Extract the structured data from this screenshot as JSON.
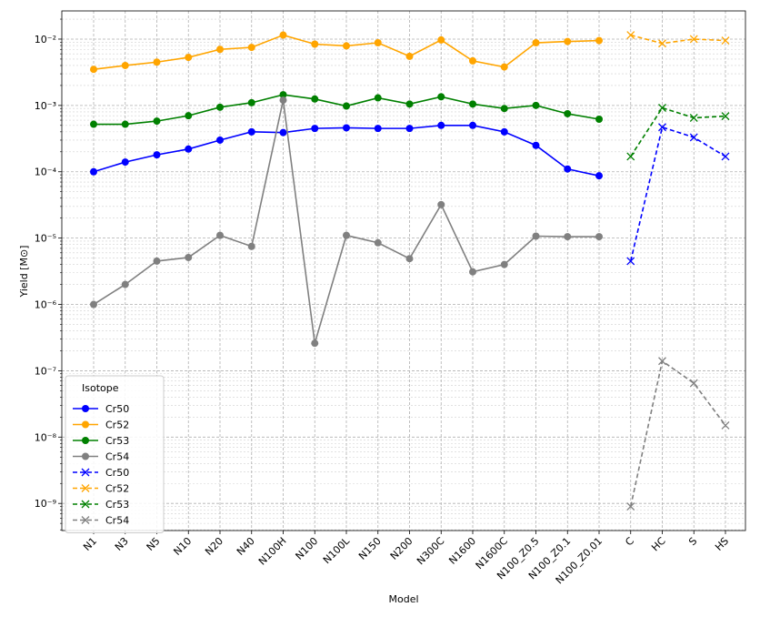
{
  "chart_data": {
    "type": "line",
    "x_label": "Model",
    "y_label": "Yield [M⊙]",
    "categories": [
      "N1",
      "N3",
      "N5",
      "N10",
      "N20",
      "N40",
      "N100H",
      "N100",
      "N100L",
      "N150",
      "N200",
      "N300C",
      "N1600",
      "N1600C",
      "N100_Z0.5",
      "N100_Z0.1",
      "N100_Z0.01",
      "C",
      "HC",
      "S",
      "HS"
    ],
    "log_y": true,
    "grid": true,
    "legend_title": "Isotope",
    "legend_loc": "lower left",
    "ylim": [
      3.9e-10,
      0.0266
    ],
    "yticks": [
      {
        "value": 1e-09,
        "label": "10⁻⁹"
      },
      {
        "value": 1e-08,
        "label": "10⁻⁸"
      },
      {
        "value": 1e-07,
        "label": "10⁻⁷"
      },
      {
        "value": 1e-06,
        "label": "10⁻⁶"
      },
      {
        "value": 1e-05,
        "label": "10⁻⁵"
      },
      {
        "value": 0.0001,
        "label": "10⁻⁴"
      },
      {
        "value": 0.001,
        "label": "10⁻³"
      },
      {
        "value": 0.01,
        "label": "10⁻²"
      }
    ],
    "yticks_minor": [
      4e-10,
      5e-10,
      6e-10,
      7e-10,
      8e-10,
      9e-10,
      2e-09,
      3e-09,
      4e-09,
      5e-09,
      6e-09,
      7e-09,
      8e-09,
      9e-09,
      2e-08,
      3e-08,
      4e-08,
      5e-08,
      6e-08,
      7e-08,
      8e-08,
      9e-08,
      2e-07,
      3e-07,
      4e-07,
      5e-07,
      6e-07,
      7e-07,
      8e-07,
      9e-07,
      2e-06,
      3e-06,
      4e-06,
      5e-06,
      6e-06,
      7e-06,
      8e-06,
      9e-06,
      2e-05,
      3e-05,
      4e-05,
      5e-05,
      6e-05,
      7e-05,
      8e-05,
      9e-05,
      0.0002,
      0.0003,
      0.0004,
      0.0005,
      0.0006,
      0.0007,
      0.0008,
      0.0009,
      0.002,
      0.003,
      0.004,
      0.005,
      0.006,
      0.007,
      0.008,
      0.009,
      0.02
    ],
    "series": [
      {
        "name": "Cr50",
        "color": "#0000ff",
        "marker": "o",
        "linestyle": "solid",
        "values": [
          0.0001,
          0.00014,
          0.00018,
          0.00022,
          0.0003,
          0.0004,
          0.00039,
          0.00045,
          0.00046,
          0.00045,
          0.00045,
          0.0005,
          0.0005,
          0.0004,
          0.00025,
          0.00011,
          8.7e-05,
          null,
          null,
          null,
          null
        ]
      },
      {
        "name": "Cr52",
        "color": "#ffa500",
        "marker": "o",
        "linestyle": "solid",
        "values": [
          0.0035,
          0.004,
          0.0045,
          0.0053,
          0.007,
          0.0075,
          0.0115,
          0.0084,
          0.0079,
          0.0088,
          0.0055,
          0.0097,
          0.0047,
          0.0038,
          0.0088,
          0.0092,
          0.0095,
          null,
          null,
          null,
          null
        ]
      },
      {
        "name": "Cr53",
        "color": "#008000",
        "marker": "o",
        "linestyle": "solid",
        "values": [
          0.00052,
          0.00052,
          0.00058,
          0.0007,
          0.00094,
          0.0011,
          0.00145,
          0.00125,
          0.00098,
          0.0013,
          0.00105,
          0.00135,
          0.00105,
          0.0009,
          0.001,
          0.00075,
          0.00062,
          null,
          null,
          null,
          null
        ]
      },
      {
        "name": "Cr54",
        "color": "#808080",
        "marker": "o",
        "linestyle": "solid",
        "values": [
          1e-06,
          2e-06,
          4.5e-06,
          5.1e-06,
          1.1e-05,
          7.5e-06,
          0.0012,
          2.6e-07,
          1.1e-05,
          8.5e-06,
          4.9e-06,
          3.2e-05,
          3.1e-06,
          4e-06,
          1.07e-05,
          1.05e-05,
          1.05e-05,
          null,
          null,
          null,
          null
        ]
      },
      {
        "name": "Cr50",
        "color": "#0000ff",
        "marker": "x",
        "linestyle": "dashed",
        "values": [
          null,
          null,
          null,
          null,
          null,
          null,
          null,
          null,
          null,
          null,
          null,
          null,
          null,
          null,
          null,
          null,
          null,
          4.5e-06,
          0.00047,
          0.00033,
          0.00017
        ]
      },
      {
        "name": "Cr52",
        "color": "#ffa500",
        "marker": "x",
        "linestyle": "dashed",
        "values": [
          null,
          null,
          null,
          null,
          null,
          null,
          null,
          null,
          null,
          null,
          null,
          null,
          null,
          null,
          null,
          null,
          null,
          0.0115,
          0.0086,
          0.01,
          0.0095
        ]
      },
      {
        "name": "Cr53",
        "color": "#008000",
        "marker": "x",
        "linestyle": "dashed",
        "values": [
          null,
          null,
          null,
          null,
          null,
          null,
          null,
          null,
          null,
          null,
          null,
          null,
          null,
          null,
          null,
          null,
          null,
          0.00017,
          0.00092,
          0.00065,
          0.00069
        ]
      },
      {
        "name": "Cr54",
        "color": "#808080",
        "marker": "x",
        "linestyle": "dashed",
        "values": [
          null,
          null,
          null,
          null,
          null,
          null,
          null,
          null,
          null,
          null,
          null,
          null,
          null,
          null,
          null,
          null,
          null,
          9e-10,
          1.4e-07,
          6.5e-08,
          1.5e-08
        ]
      }
    ]
  }
}
